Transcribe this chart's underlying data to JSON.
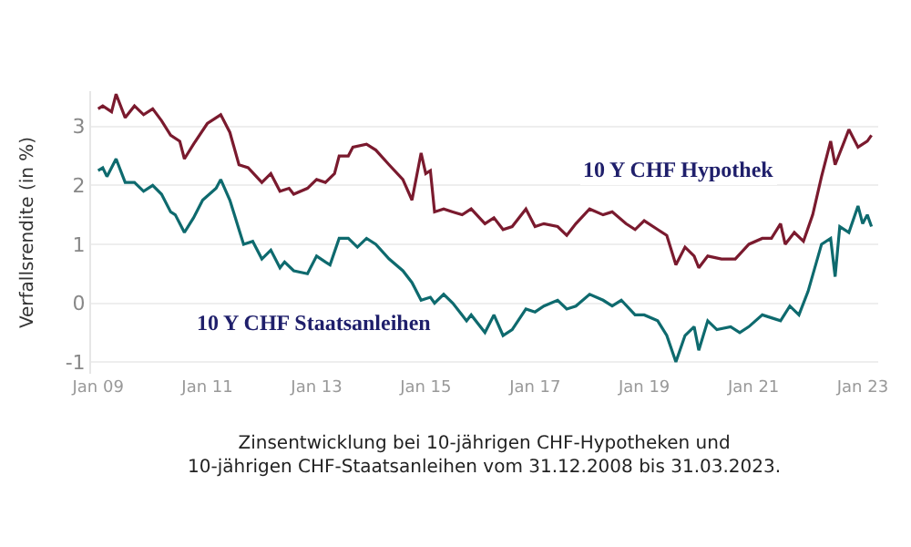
{
  "chart_data": {
    "type": "line",
    "ylabel": "Verfallsrendite (in %)",
    "annotations": [
      "Zinsentwicklung bei 10-jährigen CHF-Hypotheken und\n10-jährigen CHF-Staatsanleihen vom 31.12.2008 bis 31.03.2023."
    ],
    "xlim": [
      "2008-11-15",
      "2023-04-15"
    ],
    "xticks": [
      {
        "value": "2009-01-01",
        "label": "Jan 09"
      },
      {
        "value": "2011-01-01",
        "label": "Jan 11"
      },
      {
        "value": "2013-01-01",
        "label": "Jan 13"
      },
      {
        "value": "2015-01-01",
        "label": "Jan 15"
      },
      {
        "value": "2017-01-01",
        "label": "Jan 17"
      },
      {
        "value": "2019-01-01",
        "label": "Jan 19"
      },
      {
        "value": "2021-01-01",
        "label": "Jan 21"
      },
      {
        "value": "2023-01-01",
        "label": "Jan 23"
      }
    ],
    "ylim": [
      -1.2,
      3.6
    ],
    "yticks": [
      -1,
      0,
      1,
      2,
      3
    ],
    "grid": "y",
    "legend": false,
    "line_style": "solid",
    "series": [
      {
        "name": "10 Y CHF Hypothek",
        "color": "#7a1a2e",
        "x": [
          "2009-01",
          "2009-02",
          "2009-04",
          "2009-05",
          "2009-07",
          "2009-09",
          "2009-11",
          "2010-01",
          "2010-03",
          "2010-05",
          "2010-07",
          "2010-08",
          "2010-10",
          "2011-01",
          "2011-04",
          "2011-06",
          "2011-08",
          "2011-10",
          "2012-01",
          "2012-03",
          "2012-05",
          "2012-07",
          "2012-08",
          "2012-11",
          "2013-01",
          "2013-03",
          "2013-05",
          "2013-06",
          "2013-08",
          "2013-09",
          "2013-12",
          "2014-02",
          "2014-05",
          "2014-08",
          "2014-10",
          "2014-12",
          "2015-01",
          "2015-02",
          "2015-03",
          "2015-05",
          "2015-07",
          "2015-09",
          "2015-11",
          "2016-02",
          "2016-04",
          "2016-06",
          "2016-08",
          "2016-11",
          "2017-01",
          "2017-03",
          "2017-06",
          "2017-08",
          "2017-10",
          "2018-01",
          "2018-04",
          "2018-06",
          "2018-09",
          "2018-11",
          "2019-01",
          "2019-04",
          "2019-06",
          "2019-08",
          "2019-10",
          "2019-12",
          "2020-01",
          "2020-03",
          "2020-06",
          "2020-09",
          "2020-12",
          "2021-03",
          "2021-05",
          "2021-07",
          "2021-08",
          "2021-10",
          "2021-12",
          "2022-02",
          "2022-04",
          "2022-06",
          "2022-07",
          "2022-09",
          "2022-10",
          "2022-12",
          "2023-02",
          "2023-03"
        ],
        "values": [
          3.3,
          3.35,
          3.25,
          3.55,
          3.15,
          3.35,
          3.2,
          3.3,
          3.1,
          2.85,
          2.75,
          2.45,
          2.7,
          3.05,
          3.2,
          2.9,
          2.35,
          2.3,
          2.05,
          2.2,
          1.9,
          1.95,
          1.85,
          1.95,
          2.1,
          2.05,
          2.2,
          2.5,
          2.5,
          2.65,
          2.7,
          2.6,
          2.35,
          2.1,
          1.75,
          2.55,
          2.2,
          2.25,
          1.55,
          1.6,
          1.55,
          1.5,
          1.6,
          1.35,
          1.45,
          1.25,
          1.3,
          1.6,
          1.3,
          1.35,
          1.3,
          1.15,
          1.35,
          1.6,
          1.5,
          1.55,
          1.35,
          1.25,
          1.4,
          1.25,
          1.15,
          0.65,
          0.95,
          0.8,
          0.6,
          0.8,
          0.75,
          0.75,
          1.0,
          1.1,
          1.1,
          1.35,
          1.0,
          1.2,
          1.05,
          1.5,
          2.15,
          2.75,
          2.35,
          2.75,
          2.95,
          2.65,
          2.75,
          2.85
        ]
      },
      {
        "name": "10 Y CHF Staatsanleihen",
        "color": "#0e6a6e",
        "x": [
          "2009-01",
          "2009-02",
          "2009-03",
          "2009-05",
          "2009-07",
          "2009-09",
          "2009-11",
          "2010-01",
          "2010-03",
          "2010-05",
          "2010-06",
          "2010-08",
          "2010-10",
          "2010-12",
          "2011-03",
          "2011-04",
          "2011-06",
          "2011-08",
          "2011-09",
          "2011-11",
          "2012-01",
          "2012-03",
          "2012-05",
          "2012-06",
          "2012-08",
          "2012-11",
          "2013-01",
          "2013-03",
          "2013-04",
          "2013-06",
          "2013-08",
          "2013-10",
          "2013-12",
          "2014-02",
          "2014-05",
          "2014-08",
          "2014-10",
          "2014-12",
          "2015-02",
          "2015-03",
          "2015-05",
          "2015-07",
          "2015-10",
          "2015-11",
          "2016-02",
          "2016-04",
          "2016-06",
          "2016-08",
          "2016-11",
          "2017-01",
          "2017-03",
          "2017-06",
          "2017-08",
          "2017-10",
          "2018-01",
          "2018-04",
          "2018-06",
          "2018-08",
          "2018-11",
          "2019-01",
          "2019-04",
          "2019-06",
          "2019-08",
          "2019-10",
          "2019-12",
          "2020-01",
          "2020-03",
          "2020-05",
          "2020-08",
          "2020-10",
          "2020-12",
          "2021-03",
          "2021-05",
          "2021-07",
          "2021-09",
          "2021-11",
          "2022-01",
          "2022-04",
          "2022-06",
          "2022-07",
          "2022-08",
          "2022-10",
          "2022-12",
          "2023-01",
          "2023-02",
          "2023-03"
        ],
        "values": [
          2.25,
          2.3,
          2.15,
          2.45,
          2.05,
          2.05,
          1.9,
          2.0,
          1.85,
          1.55,
          1.5,
          1.2,
          1.45,
          1.75,
          1.95,
          2.1,
          1.75,
          1.25,
          1.0,
          1.05,
          0.75,
          0.9,
          0.6,
          0.7,
          0.55,
          0.5,
          0.8,
          0.7,
          0.65,
          1.1,
          1.1,
          0.95,
          1.1,
          1.0,
          0.75,
          0.55,
          0.35,
          0.05,
          0.1,
          0.0,
          0.15,
          0.0,
          -0.3,
          -0.2,
          -0.5,
          -0.2,
          -0.55,
          -0.45,
          -0.1,
          -0.15,
          -0.05,
          0.05,
          -0.1,
          -0.05,
          0.15,
          0.05,
          -0.05,
          0.05,
          -0.2,
          -0.2,
          -0.3,
          -0.55,
          -1.0,
          -0.55,
          -0.4,
          -0.8,
          -0.3,
          -0.45,
          -0.4,
          -0.5,
          -0.4,
          -0.2,
          -0.25,
          -0.3,
          -0.05,
          -0.2,
          0.2,
          1.0,
          1.1,
          0.45,
          1.3,
          1.2,
          1.65,
          1.35,
          1.5,
          1.3
        ]
      }
    ]
  }
}
